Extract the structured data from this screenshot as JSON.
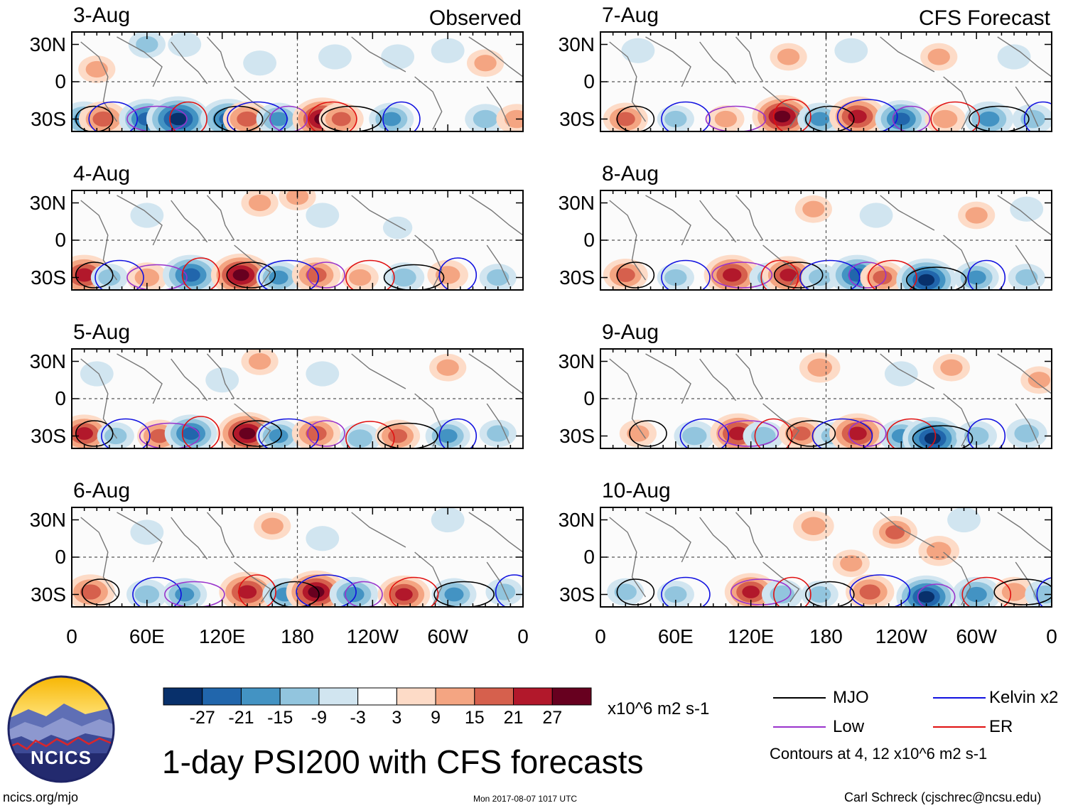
{
  "chart_data": {
    "type": "heatmap",
    "title": "1-day PSI200 with CFS forecasts",
    "variable": "PSI200",
    "units": "x10^6 m2 s-1",
    "x_ticks": [
      "0",
      "60E",
      "120E",
      "180",
      "120W",
      "60W",
      "0"
    ],
    "y_ticks": [
      "30N",
      "0",
      "30S"
    ],
    "x_range_deg": [
      0,
      360
    ],
    "y_range_deg": [
      -40,
      40
    ],
    "colorbar": {
      "ticks": [
        "-27",
        "-21",
        "-15",
        "-9",
        "-3",
        "3",
        "9",
        "15",
        "21",
        "27"
      ],
      "colors": [
        "#08306b",
        "#2166ac",
        "#4393c3",
        "#92c5de",
        "#d1e5f0",
        "#ffffff",
        "#fddbc7",
        "#f4a582",
        "#d6604d",
        "#b2182b",
        "#67001f"
      ]
    },
    "panels": [
      {
        "date": "3-Aug",
        "tag": "Observed",
        "source": "obs",
        "blobs": [
          [
            10,
            -30,
            -18
          ],
          [
            25,
            -30,
            18
          ],
          [
            60,
            -30,
            -24
          ],
          [
            85,
            -30,
            -30
          ],
          [
            125,
            -30,
            -24
          ],
          [
            140,
            -30,
            18
          ],
          [
            165,
            -30,
            -15
          ],
          [
            200,
            -30,
            27
          ],
          [
            215,
            -30,
            15
          ],
          [
            255,
            -30,
            -15
          ],
          [
            330,
            -30,
            -12
          ],
          [
            355,
            -30,
            12
          ],
          [
            60,
            30,
            -9
          ],
          [
            90,
            30,
            -6
          ],
          [
            150,
            15,
            -6
          ],
          [
            210,
            20,
            -6
          ],
          [
            260,
            20,
            -6
          ],
          [
            300,
            25,
            -6
          ],
          [
            20,
            10,
            9
          ],
          [
            330,
            15,
            9
          ]
        ]
      },
      {
        "date": "4-Aug",
        "tag": "",
        "source": "obs",
        "blobs": [
          [
            10,
            -28,
            24
          ],
          [
            30,
            -30,
            -9
          ],
          [
            60,
            -30,
            12
          ],
          [
            95,
            -28,
            -24
          ],
          [
            135,
            -28,
            27
          ],
          [
            165,
            -30,
            -15
          ],
          [
            195,
            -28,
            18
          ],
          [
            230,
            -30,
            9
          ],
          [
            265,
            -30,
            -12
          ],
          [
            300,
            -28,
            12
          ],
          [
            340,
            -30,
            -9
          ],
          [
            200,
            20,
            -6
          ],
          [
            260,
            10,
            -3
          ],
          [
            60,
            20,
            -6
          ],
          [
            150,
            30,
            9
          ],
          [
            180,
            35,
            9
          ]
        ]
      },
      {
        "date": "5-Aug",
        "tag": "",
        "source": "obs",
        "blobs": [
          [
            10,
            -28,
            21
          ],
          [
            35,
            -30,
            -9
          ],
          [
            70,
            -30,
            15
          ],
          [
            95,
            -28,
            -21
          ],
          [
            140,
            -28,
            27
          ],
          [
            165,
            -30,
            -15
          ],
          [
            195,
            -28,
            18
          ],
          [
            230,
            -32,
            -12
          ],
          [
            260,
            -30,
            15
          ],
          [
            300,
            -30,
            -15
          ],
          [
            340,
            -28,
            -9
          ],
          [
            20,
            20,
            -6
          ],
          [
            150,
            30,
            9
          ],
          [
            200,
            20,
            -6
          ],
          [
            300,
            25,
            9
          ],
          [
            120,
            15,
            -6
          ]
        ]
      },
      {
        "date": "6-Aug",
        "tag": "",
        "source": "obs",
        "blobs": [
          [
            15,
            -28,
            18
          ],
          [
            60,
            -30,
            -12
          ],
          [
            90,
            -30,
            -15
          ],
          [
            140,
            -28,
            24
          ],
          [
            170,
            -30,
            -15
          ],
          [
            195,
            -28,
            27
          ],
          [
            225,
            -30,
            -18
          ],
          [
            265,
            -30,
            21
          ],
          [
            305,
            -30,
            -15
          ],
          [
            345,
            -28,
            -9
          ],
          [
            160,
            25,
            9
          ],
          [
            200,
            15,
            -6
          ],
          [
            300,
            30,
            -6
          ],
          [
            60,
            20,
            -6
          ]
        ]
      },
      {
        "date": "7-Aug",
        "tag": "CFS Forecast",
        "source": "cfs",
        "blobs": [
          [
            20,
            -30,
            15
          ],
          [
            60,
            -30,
            -9
          ],
          [
            100,
            -30,
            9
          ],
          [
            145,
            -28,
            27
          ],
          [
            175,
            -30,
            -15
          ],
          [
            205,
            -28,
            24
          ],
          [
            240,
            -30,
            -21
          ],
          [
            275,
            -30,
            12
          ],
          [
            310,
            -30,
            -18
          ],
          [
            345,
            -30,
            -12
          ],
          [
            30,
            25,
            -6
          ],
          [
            150,
            20,
            9
          ],
          [
            200,
            25,
            -6
          ],
          [
            270,
            20,
            9
          ],
          [
            330,
            20,
            -6
          ]
        ]
      },
      {
        "date": "8-Aug",
        "tag": "",
        "source": "cfs",
        "blobs": [
          [
            20,
            -28,
            15
          ],
          [
            60,
            -30,
            -9
          ],
          [
            105,
            -28,
            24
          ],
          [
            135,
            -30,
            -12
          ],
          [
            150,
            -28,
            21
          ],
          [
            175,
            -30,
            -9
          ],
          [
            205,
            -28,
            -24
          ],
          [
            225,
            -30,
            15
          ],
          [
            260,
            -32,
            -27
          ],
          [
            300,
            -30,
            -15
          ],
          [
            340,
            -30,
            -9
          ],
          [
            170,
            25,
            9
          ],
          [
            220,
            20,
            -6
          ],
          [
            300,
            20,
            9
          ],
          [
            340,
            25,
            -6
          ]
        ]
      },
      {
        "date": "9-Aug",
        "tag": "",
        "source": "cfs",
        "blobs": [
          [
            30,
            -28,
            9
          ],
          [
            75,
            -30,
            -12
          ],
          [
            110,
            -28,
            24
          ],
          [
            130,
            -30,
            -12
          ],
          [
            160,
            -28,
            15
          ],
          [
            185,
            -30,
            -9
          ],
          [
            205,
            -28,
            24
          ],
          [
            240,
            -30,
            -15
          ],
          [
            265,
            -32,
            -27
          ],
          [
            300,
            -30,
            -12
          ],
          [
            340,
            -28,
            -12
          ],
          [
            175,
            25,
            12
          ],
          [
            240,
            20,
            -6
          ],
          [
            280,
            25,
            9
          ],
          [
            350,
            15,
            9
          ]
        ]
      },
      {
        "date": "10-Aug",
        "tag": "",
        "source": "cfs",
        "blobs": [
          [
            20,
            -28,
            -9
          ],
          [
            60,
            -30,
            -9
          ],
          [
            120,
            -28,
            21
          ],
          [
            145,
            -30,
            -12
          ],
          [
            175,
            -30,
            -9
          ],
          [
            215,
            -28,
            18
          ],
          [
            260,
            -32,
            -27
          ],
          [
            300,
            -30,
            -18
          ],
          [
            330,
            -28,
            12
          ],
          [
            355,
            -30,
            -12
          ],
          [
            170,
            25,
            12
          ],
          [
            235,
            20,
            15
          ],
          [
            270,
            5,
            12
          ],
          [
            200,
            -5,
            9
          ],
          [
            290,
            30,
            -6
          ]
        ]
      }
    ]
  },
  "colorbar_units": "x10^6 m2 s-1",
  "legend": {
    "items": [
      {
        "label": "MJO",
        "color": "#000000"
      },
      {
        "label": "Kelvin x2",
        "color": "#1010e0"
      },
      {
        "label": "Low",
        "color": "#9933cc"
      },
      {
        "label": "ER",
        "color": "#e01010"
      }
    ],
    "contour_note": "Contours at 4, 12 x10^6 m2 s-1"
  },
  "logo": {
    "text": "NCICS"
  },
  "footer": {
    "site": "ncics.org/mjo",
    "timestamp": "Mon 2017-08-07 1017 UTC",
    "credit": "Carl Schreck (cjschrec@ncsu.edu)"
  }
}
